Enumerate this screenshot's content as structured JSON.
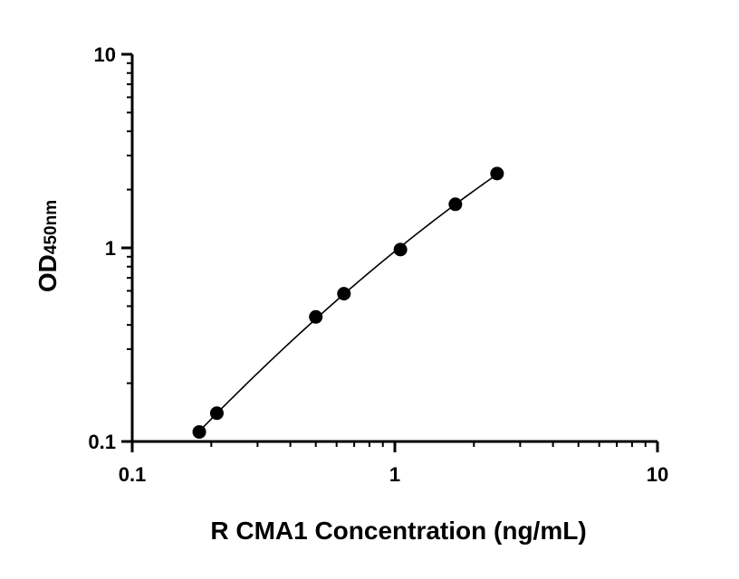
{
  "chart_data": {
    "type": "scatter",
    "xlabel": "R CMA1 Concentration (ng/mL)",
    "ylabel": "OD",
    "ylabel_subscript": "450nm",
    "x_scale": "log",
    "y_scale": "log",
    "xlim": [
      0.1,
      10
    ],
    "ylim": [
      0.1,
      10
    ],
    "x_ticks": [
      "0.1",
      "1",
      "10"
    ],
    "y_ticks": [
      "0.1",
      "1",
      "10"
    ],
    "grid": false,
    "fit_curve": true,
    "series": [
      {
        "x": [
          0.18,
          0.21,
          0.5,
          0.64,
          1.05,
          1.7,
          2.45
        ],
        "y": [
          0.112,
          0.14,
          0.44,
          0.58,
          0.98,
          1.68,
          2.42
        ]
      }
    ],
    "colors": {
      "marker": "#000000",
      "line": "#000000",
      "axis": "#000000"
    }
  }
}
